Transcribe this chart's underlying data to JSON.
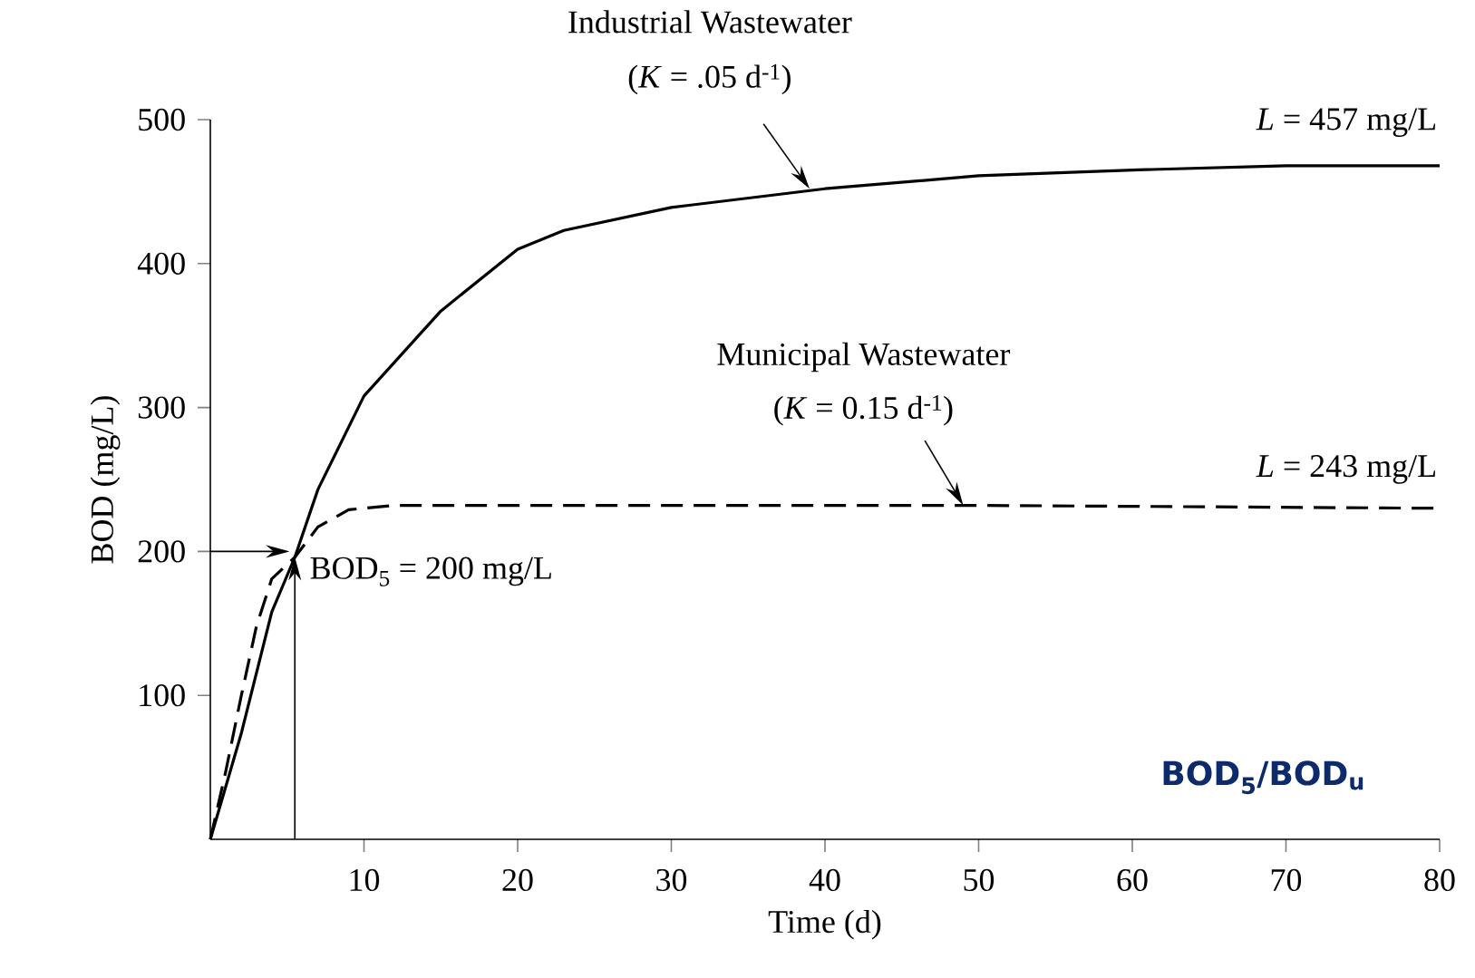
{
  "chart_data": {
    "type": "line",
    "xlabel": "Time (d)",
    "ylabel": "BOD (mg/L)",
    "xlim": [
      0,
      80
    ],
    "ylim": [
      0,
      500
    ],
    "xticks": [
      10,
      20,
      30,
      40,
      50,
      60,
      70,
      80
    ],
    "yticks": [
      100,
      200,
      300,
      400,
      500
    ],
    "series": [
      {
        "color": "#000000",
        "line_style": "solid",
        "x": [
          0,
          2,
          4,
          5.5,
          7,
          10,
          15,
          20,
          23,
          30,
          40,
          50,
          60,
          70,
          80
        ],
        "values": [
          0,
          73,
          158,
          196,
          243,
          308,
          367,
          410,
          423,
          439,
          452,
          461,
          465,
          468,
          468
        ]
      },
      {
        "color": "#000000",
        "line_style": "dashed",
        "x": [
          0,
          1,
          2,
          3,
          4,
          5.5,
          7,
          9,
          12,
          50,
          80
        ],
        "values": [
          0,
          47,
          99,
          148,
          181,
          196,
          217,
          229,
          232,
          232,
          230
        ]
      }
    ],
    "annotations": [
      "Industrial Wastewater",
      {
        "text": "(*K* = .05 d$^{-1}$)",
        "x": 39,
        "y": 452
      },
      "Municipal Wastewater",
      {
        "text": "(*K* = 0.15 d$^{-1}$)",
        "x": 49,
        "y": 232
      },
      "*L* = 457 mg/L",
      "*L* = 243 mg/L",
      {
        "text": "BOD$_{5}$ = 200 mg/L",
        "x": 5.5,
        "y": 200
      },
      "BOD$_{5}$/BOD$_{u}$"
    ]
  }
}
